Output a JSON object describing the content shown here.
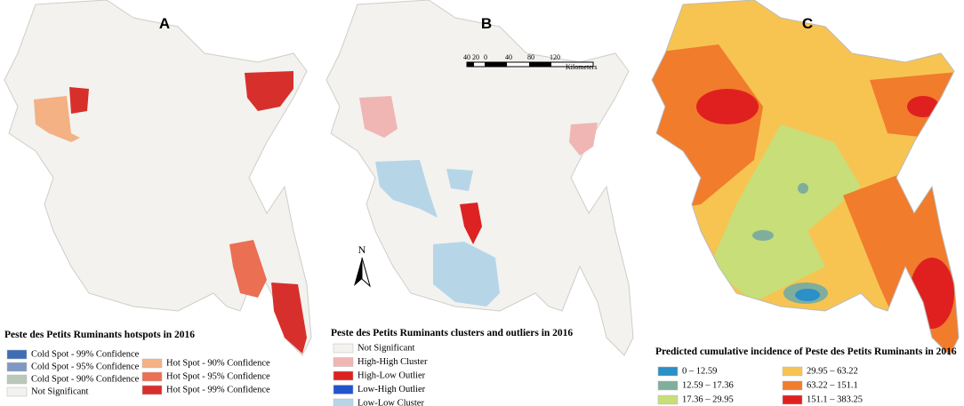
{
  "panels": [
    {
      "label": "A",
      "legend": {
        "title": "Peste des Petits Ruminants hotspots in 2016",
        "items": [
          {
            "label": "Cold Spot - 99% Confidence",
            "color": "#3e6db5"
          },
          {
            "label": "Cold Spot - 95% Confidence",
            "color": "#8099c2"
          },
          {
            "label": "Cold Spot - 90% Confidence",
            "color": "#b9c8b8"
          },
          {
            "label": "Not Significant",
            "color": "#f3f2ef"
          },
          {
            "label": "Hot Spot - 90% Confidence",
            "color": "#f4b183"
          },
          {
            "label": "Hot Spot - 95% Confidence",
            "color": "#ea6f53"
          },
          {
            "label": "Hot Spot - 99% Confidence",
            "color": "#d7302c"
          }
        ]
      }
    },
    {
      "label": "B",
      "legend": {
        "title": "Peste des Petits Ruminants clusters and outliers in 2016",
        "items": [
          {
            "label": "Not Significant",
            "color": "#f3f2ef"
          },
          {
            "label": "High-High Cluster",
            "color": "#efb6b4"
          },
          {
            "label": "High-Low Outlier",
            "color": "#dd2222"
          },
          {
            "label": "Low-High Outlier",
            "color": "#2255cc"
          },
          {
            "label": "Low-Low Cluster",
            "color": "#b6d6e8"
          }
        ]
      }
    },
    {
      "label": "C",
      "legend": {
        "title": "Predicted cumulative incidence of Peste des Petits Ruminants in 2016",
        "items": [
          {
            "label": "0 – 12.59",
            "color": "#2b8fc8"
          },
          {
            "label": "12.59 – 17.36",
            "color": "#7fae9c"
          },
          {
            "label": "17.36 – 29.95",
            "color": "#c7de79"
          },
          {
            "label": "29.95 – 63.22",
            "color": "#f7c451"
          },
          {
            "label": "63.22 – 151.1",
            "color": "#f07c2c"
          },
          {
            "label": "151.1 – 383.25",
            "color": "#e0201f"
          }
        ]
      }
    }
  ],
  "scale_bar": {
    "ticks": [
      "40",
      "20",
      "0",
      "40",
      "80",
      "120"
    ],
    "unit": "Kilometers"
  },
  "north_arrow": "N"
}
